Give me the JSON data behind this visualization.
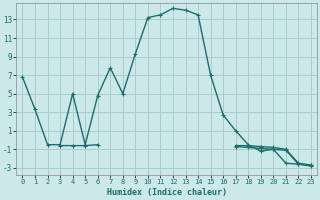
{
  "title": "",
  "xlabel": "Humidex (Indice chaleur)",
  "bg_color": "#cce8e8",
  "grid_color": "#aacccc",
  "line_color": "#1a6e6e",
  "x_data": [
    0,
    1,
    2,
    3,
    4,
    5,
    6,
    7,
    8,
    9,
    10,
    11,
    12,
    13,
    14,
    15,
    16,
    17,
    18,
    19,
    20,
    21,
    22,
    23
  ],
  "series": [
    [
      6.8,
      3.3,
      -0.5,
      -0.5,
      5.0,
      -0.5,
      4.8,
      7.8,
      5.0,
      9.3,
      13.2,
      13.5,
      14.2,
      14.0,
      13.5,
      7.0,
      2.7,
      1.0,
      -0.5,
      -1.2,
      -1.0,
      -2.5,
      -2.6,
      -2.7
    ],
    [
      null,
      null,
      null,
      -0.6,
      -0.6,
      -0.6,
      -0.5,
      null,
      null,
      null,
      null,
      null,
      null,
      null,
      null,
      null,
      null,
      -0.6,
      -0.6,
      -0.7,
      -0.8,
      -1.0,
      -2.5,
      -2.7
    ],
    [
      null,
      null,
      null,
      null,
      null,
      null,
      null,
      null,
      null,
      null,
      null,
      null,
      null,
      null,
      null,
      null,
      null,
      -0.7,
      -0.8,
      -0.9,
      -1.0,
      -1.1,
      -2.6,
      -2.8
    ]
  ],
  "xlim": [
    -0.5,
    23.5
  ],
  "ylim": [
    -3.8,
    14.8
  ],
  "yticks": [
    -3,
    -1,
    1,
    3,
    5,
    7,
    9,
    11,
    13
  ],
  "xticks": [
    0,
    1,
    2,
    3,
    4,
    5,
    6,
    7,
    8,
    9,
    10,
    11,
    12,
    13,
    14,
    15,
    16,
    17,
    18,
    19,
    20,
    21,
    22,
    23
  ],
  "xlabel_fontsize": 6.0,
  "ytick_fontsize": 5.5,
  "xtick_fontsize": 5.0,
  "linewidth": 1.0,
  "markersize": 3.0
}
